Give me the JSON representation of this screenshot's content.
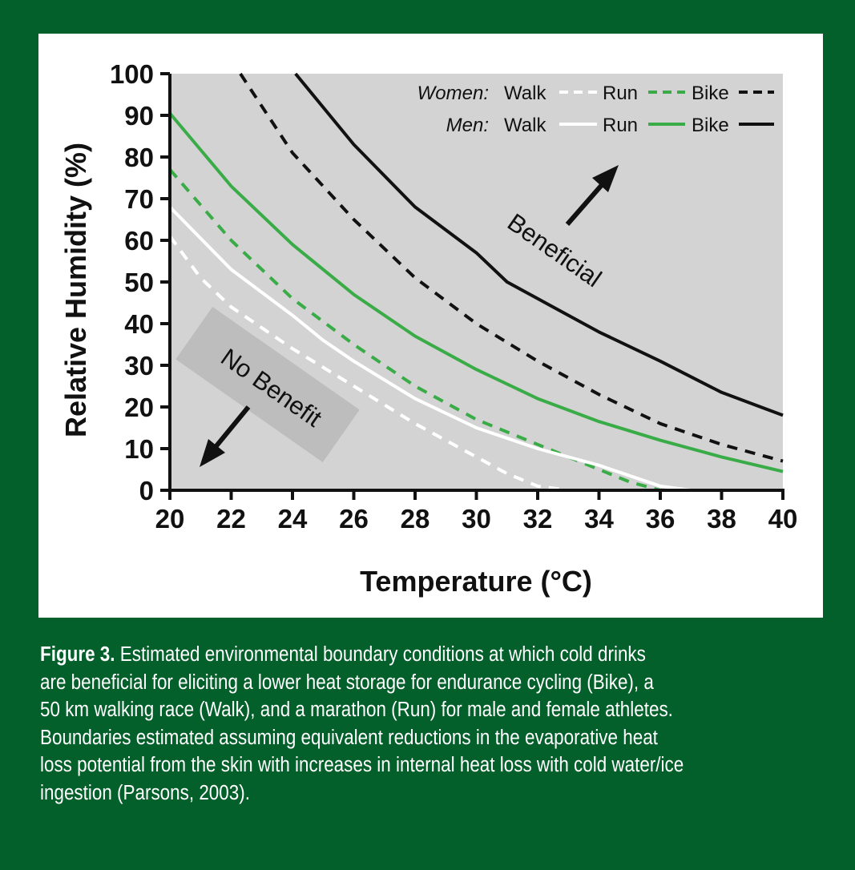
{
  "colors": {
    "background": "#04602b",
    "panel": "#ffffff",
    "plot_area": "#d3d3d3",
    "green_series": "#3aac47",
    "white_series": "#ffffff",
    "black_series": "#111111",
    "no_benefit_box": "#bdbdbd"
  },
  "chart_data": {
    "type": "line",
    "xlabel": "Temperature (°C)",
    "ylabel": "Relative Humidity (%)",
    "xlim": [
      20,
      40
    ],
    "ylim": [
      0,
      100
    ],
    "x_ticks": [
      "20",
      "22",
      "24",
      "26",
      "28",
      "30",
      "32",
      "34",
      "36",
      "38",
      "40"
    ],
    "y_ticks": [
      "0",
      "10",
      "20",
      "30",
      "40",
      "50",
      "60",
      "70",
      "80",
      "90",
      "100"
    ],
    "grid": false,
    "legend_placement": "top-right",
    "legend": {
      "rows": [
        {
          "group": "Women:",
          "walk": "Walk",
          "run": "Run",
          "bike": "Bike"
        },
        {
          "group": "Men:",
          "walk": "Walk",
          "run": "Run",
          "bike": "Bike"
        }
      ]
    },
    "series": [
      {
        "group": "Women",
        "activity": "Walk",
        "color": "white",
        "dash": "dashed",
        "points": [
          [
            20,
            61
          ],
          [
            21,
            51
          ],
          [
            22,
            44
          ],
          [
            24,
            34
          ],
          [
            26,
            25
          ],
          [
            28,
            16
          ],
          [
            30,
            8
          ],
          [
            31,
            4
          ],
          [
            32,
            1
          ],
          [
            33,
            0
          ]
        ]
      },
      {
        "group": "Women",
        "activity": "Run",
        "color": "green",
        "dash": "dashed",
        "points": [
          [
            20,
            77
          ],
          [
            22,
            60
          ],
          [
            24,
            46
          ],
          [
            26,
            35
          ],
          [
            28,
            25
          ],
          [
            30,
            17
          ],
          [
            32,
            11
          ],
          [
            34,
            5
          ],
          [
            35,
            2
          ],
          [
            36,
            0
          ]
        ]
      },
      {
        "group": "Women",
        "activity": "Bike",
        "color": "black",
        "dash": "dashed",
        "points": [
          [
            22.3,
            100
          ],
          [
            24,
            81
          ],
          [
            26,
            65
          ],
          [
            28,
            51
          ],
          [
            30,
            40
          ],
          [
            32,
            31
          ],
          [
            34,
            23
          ],
          [
            36,
            16
          ],
          [
            38,
            11
          ],
          [
            40,
            7
          ]
        ]
      },
      {
        "group": "Men",
        "activity": "Walk",
        "color": "white",
        "dash": "solid",
        "points": [
          [
            20,
            68
          ],
          [
            22,
            53
          ],
          [
            24,
            42
          ],
          [
            25,
            36
          ],
          [
            26,
            31
          ],
          [
            28,
            22
          ],
          [
            30,
            15
          ],
          [
            32,
            10
          ],
          [
            34,
            6
          ],
          [
            36,
            1
          ],
          [
            37,
            0
          ]
        ]
      },
      {
        "group": "Men",
        "activity": "Run",
        "color": "green",
        "dash": "solid",
        "points": [
          [
            20,
            90.5
          ],
          [
            22,
            73
          ],
          [
            24,
            59
          ],
          [
            26,
            47
          ],
          [
            28,
            37
          ],
          [
            30,
            29
          ],
          [
            32,
            22
          ],
          [
            34,
            16.5
          ],
          [
            36,
            12
          ],
          [
            38,
            8
          ],
          [
            40,
            4.5
          ]
        ]
      },
      {
        "group": "Men",
        "activity": "Bike",
        "color": "black",
        "dash": "solid",
        "points": [
          [
            24.1,
            100
          ],
          [
            26,
            83
          ],
          [
            28,
            68
          ],
          [
            30,
            57
          ],
          [
            31,
            50
          ],
          [
            32,
            46
          ],
          [
            34,
            38
          ],
          [
            36,
            31
          ],
          [
            38,
            23.5
          ],
          [
            40,
            18
          ]
        ]
      }
    ],
    "annotations": {
      "beneficial": "Beneficial",
      "no_benefit": "No Benefit"
    }
  },
  "caption": {
    "label": "Figure 3.",
    "lines": [
      " Estimated environmental boundary conditions at which cold drinks",
      "are beneficial for eliciting a lower heat storage for endurance cycling (Bike), a",
      "50 km walking race (Walk), and a marathon (Run) for male and female athletes.",
      "Boundaries estimated assuming equivalent reductions in the evaporative heat",
      "loss potential from the skin with increases in internal heat loss with cold water/ice",
      "ingestion (Parsons, 2003)."
    ]
  }
}
